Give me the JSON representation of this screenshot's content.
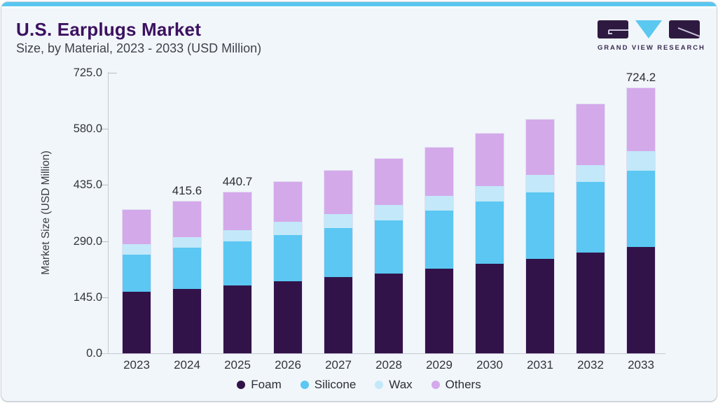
{
  "header": {
    "title": "U.S. Earplugs Market",
    "subtitle": "Size, by Material, 2023 - 2033 (USD Million)"
  },
  "logo": {
    "text": "GRAND VIEW RESEARCH",
    "purple": "#2e1a40",
    "cyan": "#5bc8f0"
  },
  "colors": {
    "accent_top_bar": "#5ac6ef",
    "card_background": "#f1f6fa",
    "title_text": "#3c1160",
    "axis_line": "#c5cad3"
  },
  "chart_data": {
    "type": "bar",
    "stacked": true,
    "title": "U.S. Earplugs Market Size, by Material, 2023 - 2033 (USD Million)",
    "categories": [
      "2023",
      "2024",
      "2025",
      "2026",
      "2027",
      "2028",
      "2029",
      "2030",
      "2031",
      "2032",
      "2033"
    ],
    "series": [
      {
        "name": "Foam",
        "color": "#321349",
        "values": [
          167.7,
          175.9,
          186.1,
          196.4,
          209.0,
          217.4,
          232.0,
          244.2,
          258.8,
          274.8,
          290.7
        ]
      },
      {
        "name": "Silicone",
        "color": "#5bc7f2",
        "values": [
          102.5,
          113.5,
          120.5,
          126.2,
          133.9,
          146.6,
          157.5,
          170.8,
          181.7,
          194.3,
          209.0
        ]
      },
      {
        "name": "Wax",
        "color": "#c2e8f9",
        "values": [
          28.1,
          28.6,
          30.6,
          36.9,
          37.1,
          41.4,
          40.2,
          41.5,
          46.6,
          44.8,
          52.4
        ]
      },
      {
        "name": "Others",
        "color": "#d4a9ea",
        "values": [
          93.2,
          97.6,
          103.5,
          109.6,
          119.1,
          125.7,
          132.0,
          143.4,
          152.3,
          167.5,
          172.1
        ]
      }
    ],
    "totals": [
      391.5,
      415.6,
      440.7,
      469.1,
      499.1,
      531.1,
      561.7,
      599.9,
      639.4,
      681.4,
      724.2
    ],
    "bar_labels": [
      "",
      "415.6",
      "440.7",
      "",
      "",
      "",
      "",
      "",
      "",
      "",
      "724.2"
    ],
    "ylabel": "Market Size (USD Million)",
    "yticks": [
      {
        "value": 0,
        "label": "0.0"
      },
      {
        "value": 145,
        "label": "145.0"
      },
      {
        "value": 290,
        "label": "290.0"
      },
      {
        "value": 435,
        "label": "435.0"
      },
      {
        "value": 580,
        "label": "580.0"
      },
      {
        "value": 725,
        "label": "725.0"
      }
    ],
    "ylim": [
      0,
      725
    ],
    "grid": false,
    "legend_position": "bottom"
  }
}
